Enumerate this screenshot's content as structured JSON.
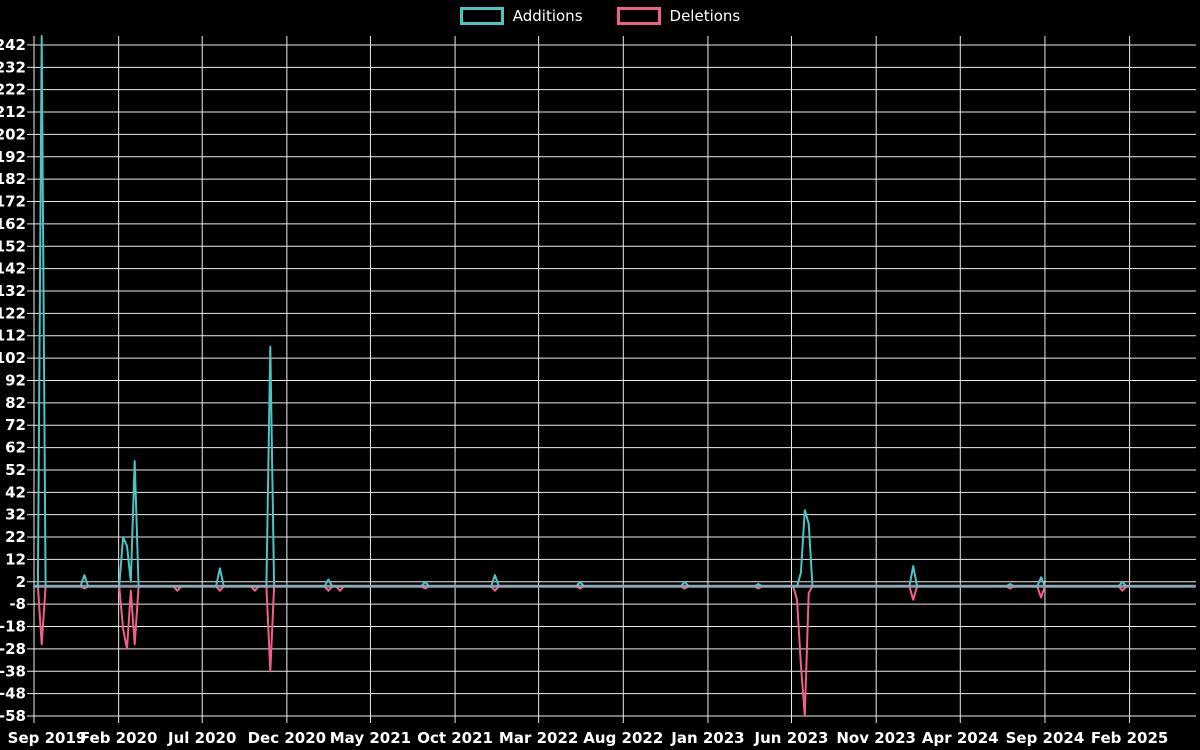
{
  "legend": {
    "items": [
      {
        "label": "Additions",
        "color": "#4dc4c4"
      },
      {
        "label": "Deletions",
        "color": "#f0608a"
      }
    ]
  },
  "chart_data": {
    "type": "line",
    "title": "",
    "xlabel": "",
    "ylabel": "",
    "background": "#000000",
    "grid_color": "#ebebeb",
    "text_color": "#ffffff",
    "zero_line_color": "#91a8b6",
    "legend_position": "top-center",
    "ylim": [
      -58,
      246
    ],
    "y_tick_labels": [
      242,
      232,
      222,
      212,
      202,
      192,
      182,
      172,
      162,
      152,
      142,
      132,
      122,
      112,
      102,
      92,
      82,
      72,
      62,
      52,
      42,
      32,
      22,
      12,
      2,
      -8,
      -18,
      -28,
      -38,
      -48,
      -58
    ],
    "x_domain": [
      "2019-09-01",
      "2025-06-01"
    ],
    "x_ticks": [
      {
        "label": "Sep 2019",
        "date": "2019-09-01"
      },
      {
        "label": "Feb 2020",
        "date": "2020-02-01"
      },
      {
        "label": "Jul 2020",
        "date": "2020-07-01"
      },
      {
        "label": "Dec 2020",
        "date": "2020-12-01"
      },
      {
        "label": "May 2021",
        "date": "2021-05-01"
      },
      {
        "label": "Oct 2021",
        "date": "2021-10-01"
      },
      {
        "label": "Mar 2022",
        "date": "2022-03-01"
      },
      {
        "label": "Aug 2022",
        "date": "2022-08-01"
      },
      {
        "label": "Jan 2023",
        "date": "2023-01-01"
      },
      {
        "label": "Jun 2023",
        "date": "2023-06-01"
      },
      {
        "label": "Nov 2023",
        "date": "2023-11-01"
      },
      {
        "label": "Apr 2024",
        "date": "2024-04-01"
      },
      {
        "label": "Sep 2024",
        "date": "2024-09-01"
      },
      {
        "label": "Feb 2025",
        "date": "2025-02-01"
      }
    ],
    "series_names": [
      "Additions",
      "Deletions"
    ],
    "series_colors": [
      "#4dc4c4",
      "#f0608a"
    ],
    "points": [
      [
        "2019-09-01",
        0,
        0
      ],
      [
        "2019-09-08",
        0,
        0
      ],
      [
        "2019-09-15",
        246,
        -26
      ],
      [
        "2019-09-22",
        0,
        0
      ],
      [
        "2019-11-24",
        0,
        0
      ],
      [
        "2019-12-01",
        5,
        -1
      ],
      [
        "2019-12-08",
        0,
        0
      ],
      [
        "2020-02-02",
        0,
        0
      ],
      [
        "2020-02-09",
        22,
        -19
      ],
      [
        "2020-02-16",
        18,
        -28
      ],
      [
        "2020-02-23",
        2,
        -2
      ],
      [
        "2020-03-01",
        56,
        -26
      ],
      [
        "2020-03-08",
        0,
        0
      ],
      [
        "2020-05-10",
        0,
        0
      ],
      [
        "2020-05-17",
        0,
        -2
      ],
      [
        "2020-05-24",
        0,
        0
      ],
      [
        "2020-07-26",
        0,
        0
      ],
      [
        "2020-08-02",
        8,
        -2
      ],
      [
        "2020-08-09",
        0,
        0
      ],
      [
        "2020-09-27",
        0,
        0
      ],
      [
        "2020-10-04",
        0,
        -2
      ],
      [
        "2020-10-11",
        0,
        0
      ],
      [
        "2020-10-25",
        0,
        0
      ],
      [
        "2020-11-01",
        107,
        -38
      ],
      [
        "2020-11-08",
        0,
        0
      ],
      [
        "2021-02-07",
        0,
        0
      ],
      [
        "2021-02-14",
        3,
        -2
      ],
      [
        "2021-02-21",
        0,
        0
      ],
      [
        "2021-02-28",
        0,
        0
      ],
      [
        "2021-03-07",
        0,
        -2
      ],
      [
        "2021-03-14",
        0,
        0
      ],
      [
        "2021-08-01",
        0,
        0
      ],
      [
        "2021-08-08",
        2,
        -1
      ],
      [
        "2021-08-15",
        0,
        0
      ],
      [
        "2021-12-05",
        0,
        0
      ],
      [
        "2021-12-12",
        5,
        -2
      ],
      [
        "2021-12-19",
        0,
        0
      ],
      [
        "2022-05-08",
        0,
        0
      ],
      [
        "2022-05-15",
        2,
        -1
      ],
      [
        "2022-05-22",
        0,
        0
      ],
      [
        "2022-11-13",
        0,
        0
      ],
      [
        "2022-11-20",
        2,
        -1
      ],
      [
        "2022-11-27",
        0,
        0
      ],
      [
        "2023-03-26",
        0,
        0
      ],
      [
        "2023-04-02",
        1,
        -1
      ],
      [
        "2023-04-09",
        0,
        0
      ],
      [
        "2023-06-04",
        0,
        0
      ],
      [
        "2023-06-11",
        0,
        -6
      ],
      [
        "2023-06-18",
        6,
        -35
      ],
      [
        "2023-06-25",
        34,
        -58
      ],
      [
        "2023-07-02",
        28,
        -3
      ],
      [
        "2023-07-09",
        0,
        0
      ],
      [
        "2023-12-31",
        0,
        0
      ],
      [
        "2024-01-07",
        9,
        -6
      ],
      [
        "2024-01-14",
        0,
        0
      ],
      [
        "2024-06-23",
        0,
        0
      ],
      [
        "2024-06-30",
        1,
        -1
      ],
      [
        "2024-07-07",
        0,
        0
      ],
      [
        "2024-08-18",
        0,
        0
      ],
      [
        "2024-08-25",
        4,
        -5
      ],
      [
        "2024-09-01",
        0,
        0
      ],
      [
        "2025-01-12",
        0,
        0
      ],
      [
        "2025-01-19",
        2,
        -2
      ],
      [
        "2025-01-26",
        0,
        0
      ],
      [
        "2025-05-25",
        0,
        0
      ]
    ]
  }
}
